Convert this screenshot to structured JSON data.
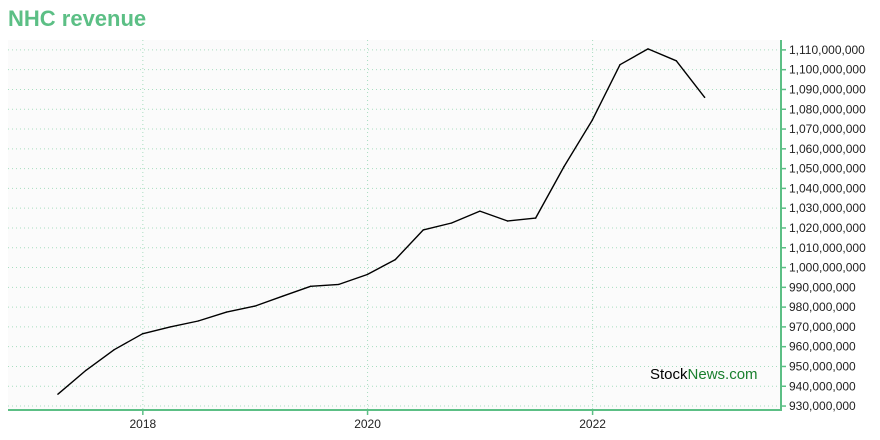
{
  "chart_data": {
    "type": "line",
    "title": "NHC revenue",
    "xlabel": "",
    "ylabel": "",
    "x_tick_labels": [
      "2018",
      "2020",
      "2022"
    ],
    "y_tick_labels": [
      "930,000,000",
      "940,000,000",
      "950,000,000",
      "960,000,000",
      "970,000,000",
      "980,000,000",
      "990,000,000",
      "1,000,000,000",
      "1,010,000,000",
      "1,020,000,000",
      "1,030,000,000",
      "1,040,000,000",
      "1,050,000,000",
      "1,060,000,000",
      "1,070,000,000",
      "1,080,000,000",
      "1,090,000,000",
      "1,100,000,000",
      "1,110,000,000"
    ],
    "xlim": [
      "2016-10-20",
      "2023-09-05"
    ],
    "ylim": [
      928000000,
      1115000000
    ],
    "grid": true,
    "y_axis_position": "right",
    "series": [
      {
        "color": "#000000",
        "points": [
          {
            "x": "2017-03-31",
            "y": 936000000
          },
          {
            "x": "2017-06-30",
            "y": 948000000
          },
          {
            "x": "2017-09-30",
            "y": 958500000
          },
          {
            "x": "2017-12-31",
            "y": 966500000
          },
          {
            "x": "2018-03-31",
            "y": 970000000
          },
          {
            "x": "2018-06-30",
            "y": 973000000
          },
          {
            "x": "2018-09-30",
            "y": 977500000
          },
          {
            "x": "2018-12-31",
            "y": 980500000
          },
          {
            "x": "2019-03-31",
            "y": 985500000
          },
          {
            "x": "2019-06-30",
            "y": 990500000
          },
          {
            "x": "2019-09-30",
            "y": 991500000
          },
          {
            "x": "2019-12-31",
            "y": 996500000
          },
          {
            "x": "2020-03-31",
            "y": 1004000000
          },
          {
            "x": "2020-06-30",
            "y": 1019000000
          },
          {
            "x": "2020-09-30",
            "y": 1022500000
          },
          {
            "x": "2020-12-31",
            "y": 1028500000
          },
          {
            "x": "2021-03-31",
            "y": 1023500000
          },
          {
            "x": "2021-06-30",
            "y": 1025000000
          },
          {
            "x": "2021-09-30",
            "y": 1051000000
          },
          {
            "x": "2021-12-31",
            "y": 1074500000
          },
          {
            "x": "2022-03-31",
            "y": 1102500000
          },
          {
            "x": "2022-06-30",
            "y": 1110500000
          },
          {
            "x": "2022-09-30",
            "y": 1104500000
          },
          {
            "x": "2022-12-31",
            "y": 1086000000
          }
        ]
      }
    ]
  },
  "watermark": {
    "part1": "Stock",
    "part2": "News.com",
    "color1": "#000000",
    "color2": "#1a7f2e"
  },
  "colors": {
    "accent": "#5cbf85",
    "grid": "#a8ddc0",
    "line": "#000000"
  }
}
